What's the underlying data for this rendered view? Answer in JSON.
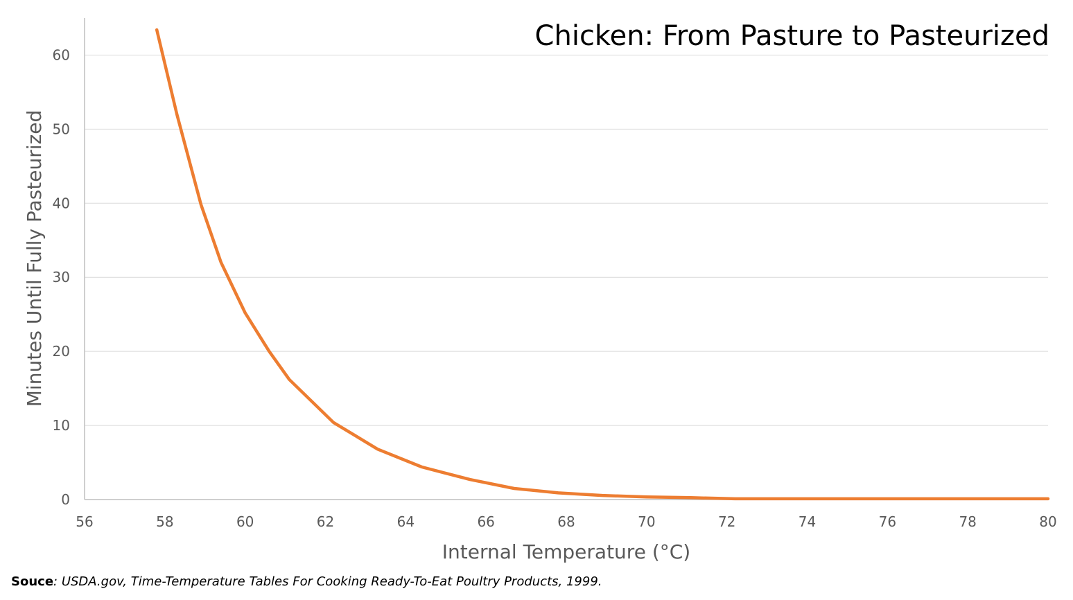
{
  "chart_data": {
    "type": "line",
    "title": "Chicken: From Pasture to Pasteurized",
    "xlabel": "Internal Temperature (°C)",
    "ylabel": "Minutes Until Fully Pasteurized",
    "xlim": [
      56,
      80
    ],
    "ylim": [
      0,
      65
    ],
    "xticks": [
      56,
      58,
      60,
      62,
      64,
      66,
      68,
      70,
      72,
      74,
      76,
      78,
      80
    ],
    "yticks": [
      0,
      10,
      20,
      30,
      40,
      50,
      60
    ],
    "grid": "horizontal",
    "legend": "none",
    "series": [
      {
        "color": "#ED7D31",
        "points": [
          [
            57.8,
            63.4
          ],
          [
            58.3,
            52.0
          ],
          [
            58.9,
            39.8
          ],
          [
            59.4,
            32.0
          ],
          [
            60.0,
            25.2
          ],
          [
            60.6,
            20.0
          ],
          [
            61.1,
            16.2
          ],
          [
            62.2,
            10.4
          ],
          [
            63.3,
            6.8
          ],
          [
            64.4,
            4.4
          ],
          [
            65.6,
            2.7
          ],
          [
            66.7,
            1.5
          ],
          [
            67.8,
            0.9
          ],
          [
            68.9,
            0.55
          ],
          [
            70.0,
            0.35
          ],
          [
            71.1,
            0.25
          ],
          [
            72.2,
            0.1
          ],
          [
            73.3,
            0.1
          ],
          [
            74.4,
            0.1
          ],
          [
            75.6,
            0.1
          ],
          [
            76.7,
            0.1
          ],
          [
            77.8,
            0.1
          ],
          [
            78.9,
            0.1
          ],
          [
            80.0,
            0.1
          ]
        ]
      }
    ]
  },
  "source": {
    "label": "Souce",
    "text": ": USDA.gov, Time-Temperature Tables For Cooking Ready-To-Eat Poultry Products, 1999."
  }
}
